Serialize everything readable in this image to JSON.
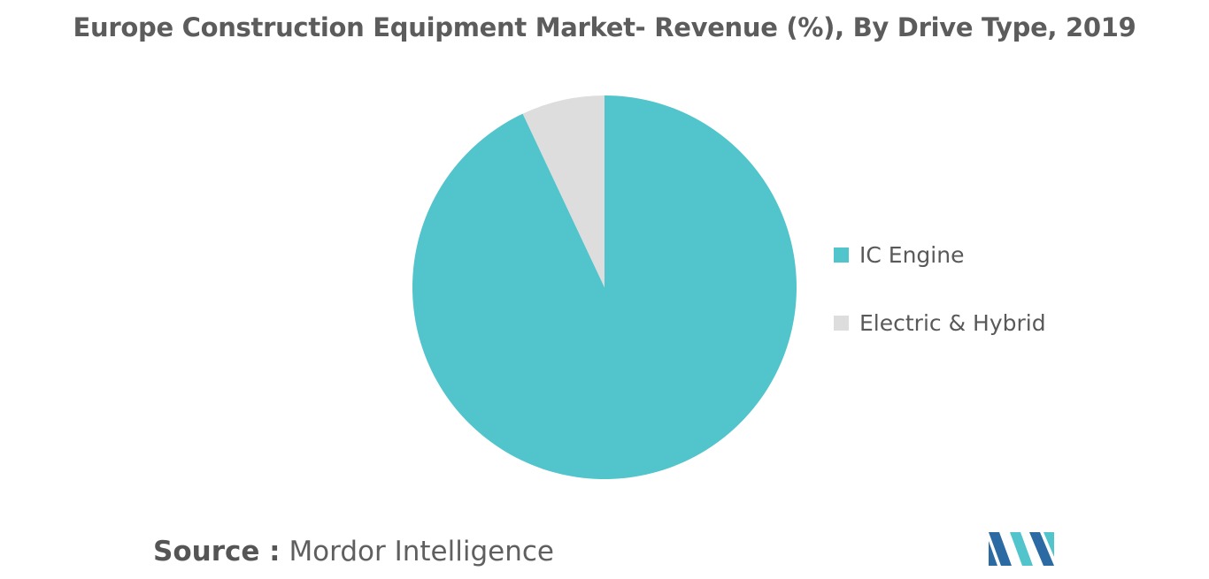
{
  "chart_data": {
    "type": "pie",
    "title": "Europe Construction Equipment Market- Revenue (%), By Drive Type, 2019",
    "categories": [
      "IC Engine",
      "Electric & Hybrid"
    ],
    "values": [
      93,
      7
    ],
    "unit": "%",
    "colors": [
      "#52c4cb",
      "#dddddd"
    ],
    "legend_position": "right"
  },
  "source": {
    "label": "Source :",
    "value": "Mordor Intelligence"
  },
  "logo": {
    "colors": [
      "#2b6aa2",
      "#52c4cb"
    ]
  }
}
